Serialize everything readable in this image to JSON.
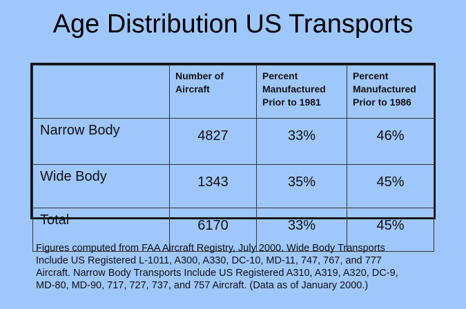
{
  "title": "Age Distribution US Transports",
  "table": {
    "headers": [
      "",
      "Number of Aircraft",
      "Percent Manufactured Prior to 1981",
      "Percent Manufactured Prior to 1986"
    ],
    "rows": [
      {
        "label": "Narrow Body",
        "count": "4827",
        "pct1981": "33%",
        "pct1986": "46%"
      },
      {
        "label": "Wide Body",
        "count": "1343",
        "pct1981": "35%",
        "pct1986": "45%"
      },
      {
        "label": "Total",
        "count": "6170",
        "pct1981": "33%",
        "pct1986": "45%"
      }
    ]
  },
  "note": [
    "Figures computed from FAA Aircraft Registry, July 2000.  Wide Body Transports",
    "Include US Registered L-1011, A300, A330, DC-10, MD-11, 747, 767, and 777",
    "Aircraft.  Narrow Body Transports Include US Registered A310, A319, A320, DC-9,",
    "MD-80, MD-90, 717, 727, 737, and 757 Aircraft.  (Data as of January 2000.)"
  ]
}
